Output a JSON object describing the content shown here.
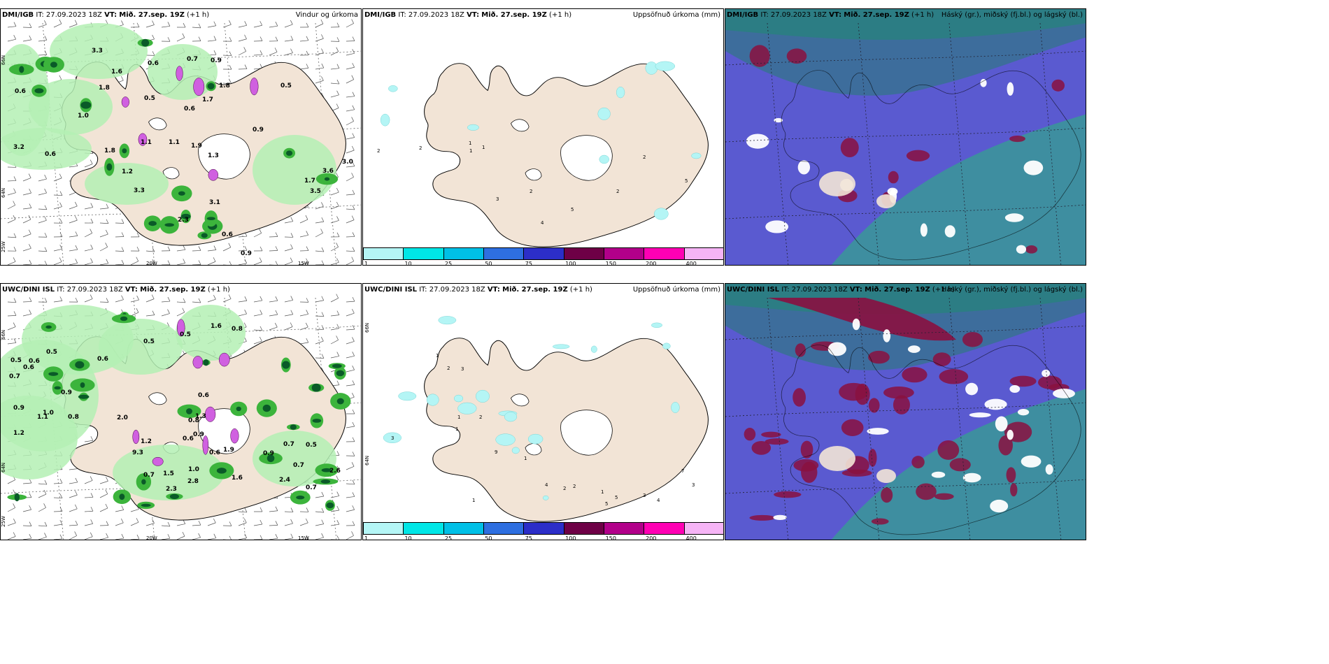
{
  "rows": [
    {
      "model": "DMI/IGB",
      "panels": [
        {
          "title_prefix": "IT: 27.09.2023 18Z ",
          "vt_label": "VT:",
          "vt_value": "Mið. 27.sep. 19Z",
          "lead": " (+1 h)",
          "right": "Vindur og úrkoma"
        },
        {
          "title_prefix": "IT: 27.09.2023 18Z ",
          "vt_label": "VT:",
          "vt_value": "Mið. 27.sep. 19Z",
          "lead": " (+1 h)",
          "right": "Uppsöfnuð úrkoma (mm)"
        },
        {
          "title_prefix": "IT: 27.09.2023 18Z ",
          "vt_label": "VT:",
          "vt_value": "Mið. 27.sep. 19Z",
          "lead": " (+1 h)",
          "right": "Háský (gr.), miðský (fj.bl.) og lágský (bl.)"
        }
      ],
      "wind_labels": [
        "3.3",
        "1.6",
        "1.8",
        "0.6",
        "0.7",
        "0.9",
        "1.8",
        "0.5",
        "0.5",
        "0.6",
        "1.0",
        "0.6",
        "1.7",
        "0.9",
        "1.8",
        "1.1",
        "1.1",
        "1.9",
        "1.3",
        "3.2",
        "1.2",
        "3.3",
        "3.1",
        "0.6",
        "1.7",
        "3.0",
        "3.6",
        "3.5",
        "2.3",
        "0.6",
        "0.9"
      ],
      "accum_labels": [
        "1",
        "2",
        "2",
        "1",
        "2",
        "3",
        "4",
        "5",
        "2",
        "5",
        "1",
        "2"
      ]
    },
    {
      "model": "UWC/DINI ISL",
      "panels": [
        {
          "title_prefix": "IT: 27.09.2023 18Z ",
          "vt_label": "VT:",
          "vt_value": "Mið. 27.sep. 19Z",
          "lead": " (+1 h)",
          "right": ""
        },
        {
          "title_prefix": "IT: 27.09.2023 18Z ",
          "vt_label": "VT:",
          "vt_value": "Mið. 27.sep. 19Z",
          "lead": " (+1 h)",
          "right": "Uppsöfnuð úrkoma (mm)"
        },
        {
          "title_prefix": "IT: 27.09.2023 18Z ",
          "vt_label": "VT:",
          "vt_value": "Mið. 27.sep. 19Z",
          "lead": " (+1 h)",
          "right": "Háský (gr.), miðský (fj.bl.) og lágský (bl.)"
        }
      ],
      "wind_labels": [
        "0.5",
        "0.9",
        "0.7",
        "0.6",
        "0.9",
        "1.2",
        "1.0",
        "0.8",
        "0.6",
        "1.1",
        "2.0",
        "1.2",
        "9.3",
        "0.7",
        "1.5",
        "2.8",
        "1.0",
        "0.6",
        "0.9",
        "0.8",
        "0.6",
        "0.5",
        "0.8",
        "1.3",
        "1.9",
        "0.6",
        "0.7",
        "0.5",
        "0.7",
        "1.6",
        "2.6",
        "2.4",
        "1.6",
        "0.7",
        "2.3",
        "0.9",
        "0.5",
        "0.6",
        "0.5"
      ],
      "accum_labels": [
        "1",
        "2",
        "3",
        "1",
        "2",
        "1",
        "3",
        "9",
        "1",
        "4",
        "2",
        "5",
        "7",
        "3",
        "3",
        "4",
        "5",
        "1",
        "1",
        "2"
      ]
    }
  ],
  "axis_labels": {
    "lon1": "20W",
    "lon2": "15W",
    "lat1": "66N",
    "lat2": "64N",
    "lat3": "25W"
  },
  "colorbar": {
    "ticks": [
      "1",
      "10",
      "25",
      "50",
      "75",
      "100",
      "150",
      "200",
      "400"
    ],
    "colors": [
      "#b4f5f5",
      "#00e6e6",
      "#00c0e6",
      "#2e6fe0",
      "#2c2ec8",
      "#6e0046",
      "#b2008a",
      "#ff00b4",
      "#f5b4f5"
    ]
  },
  "colors": {
    "land": "#f2e4d6",
    "rain_light": "#b4f0b4",
    "rain_mid": "#3cb43c",
    "rain_dark": "#0a5a28",
    "snow": "#d060e0",
    "accum": "#b4f5f5",
    "cloud_bg": "#5a5ad0"
  }
}
